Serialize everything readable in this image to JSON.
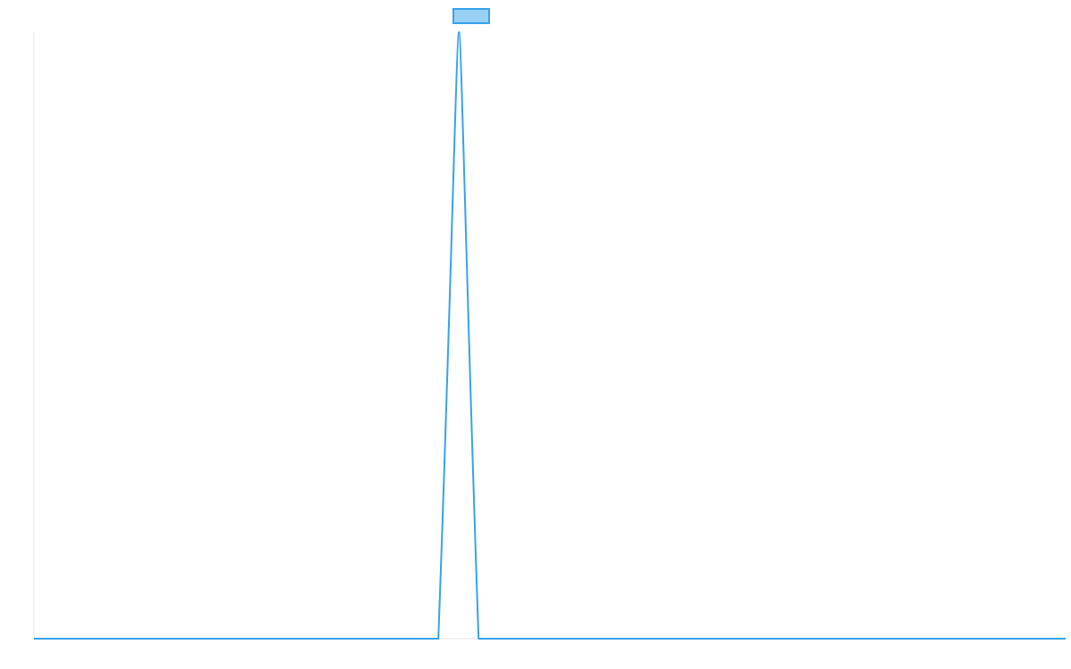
{
  "chart_data": {
    "type": "line",
    "title": "",
    "xlabel": "",
    "ylabel": "",
    "grid": false,
    "legend_position": "top-center",
    "xlim": [
      0,
      100
    ],
    "ylim": [
      0,
      1
    ],
    "series": [
      {
        "name": "",
        "color": "#36a2eb",
        "fill_color": "#9ad0f5",
        "points": [
          {
            "x": 0,
            "y": 0
          },
          {
            "x": 39.2,
            "y": 0
          },
          {
            "x": 41.2,
            "y": 1
          },
          {
            "x": 43.1,
            "y": 0
          },
          {
            "x": 100,
            "y": 0
          }
        ]
      }
    ]
  }
}
